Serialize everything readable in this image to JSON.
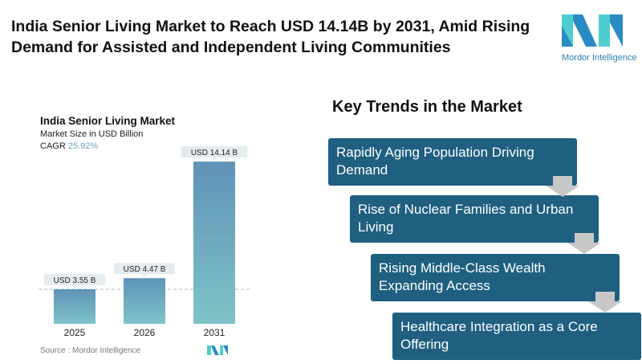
{
  "title": "India Senior Living Market to Reach USD 14.14B by 2031, Amid Rising Demand for Assisted and Independent Living Communities",
  "logo": {
    "text": "Mordor Intelligence",
    "colors": [
      "#2a8ac4",
      "#4ecdd0"
    ]
  },
  "chart_data": {
    "type": "bar",
    "title": "India Senior Living Market",
    "subtitle": "Market Size in USD Billion",
    "cagr_label": "CAGR",
    "cagr_value": "25.92%",
    "categories": [
      "2025",
      "2026",
      "2031"
    ],
    "values": [
      3.55,
      4.47,
      14.14
    ],
    "data_labels": [
      "USD 3.55 B",
      "USD 4.47 B",
      "USD 14.14 B"
    ],
    "bar_gradient": [
      "#5f93b8",
      "#7fc3c8"
    ],
    "grid": false,
    "source": "Source :  Mordor Intelligence"
  },
  "trends": {
    "title": "Key Trends in the Market",
    "items": [
      "Rapidly Aging Population Driving Demand",
      "Rise of Nuclear Families and Urban Living",
      "Rising Middle-Class Wealth Expanding Access",
      "Healthcare Integration as a Core Offering"
    ],
    "box_color": "#1f5f80"
  }
}
